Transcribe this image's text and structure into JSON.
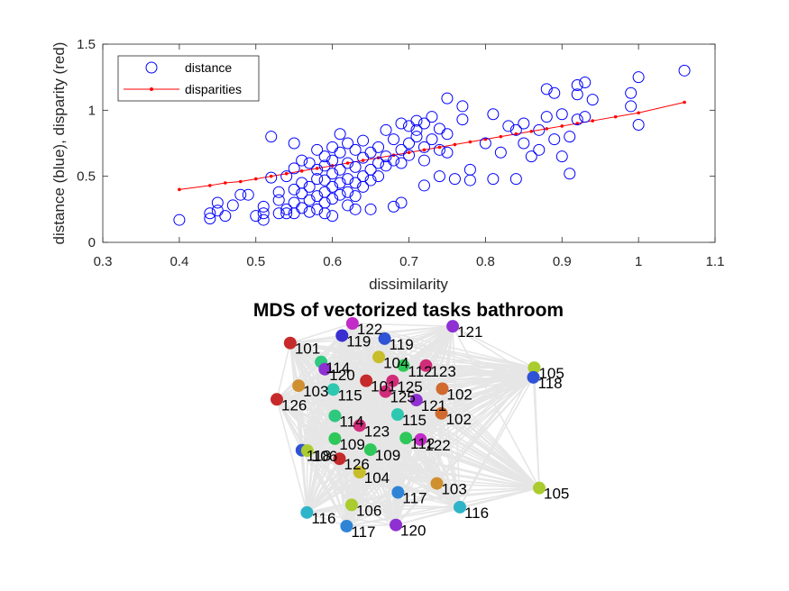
{
  "chart_data": [
    {
      "type": "scatter",
      "title": "",
      "xlabel": "dissimilarity",
      "ylabel": "distance (blue), disparity (red)",
      "xlim": [
        0.3,
        1.1
      ],
      "ylim": [
        0,
        1.5
      ],
      "xticks": [
        "0.3",
        "0.4",
        "0.5",
        "0.6",
        "0.7",
        "0.8",
        "0.9",
        "1",
        "1.1"
      ],
      "yticks": [
        "0",
        "0.5",
        "1",
        "1.5"
      ],
      "legend": {
        "placement": "top-left",
        "entries": [
          "distance",
          "disparities"
        ]
      },
      "series": [
        {
          "name": "distance",
          "color": "#0000ff",
          "marker": "circle-open",
          "points": [
            [
              0.4,
              0.17
            ],
            [
              0.44,
              0.22
            ],
            [
              0.44,
              0.18
            ],
            [
              0.45,
              0.24
            ],
            [
              0.45,
              0.3
            ],
            [
              0.46,
              0.2
            ],
            [
              0.47,
              0.28
            ],
            [
              0.48,
              0.36
            ],
            [
              0.49,
              0.36
            ],
            [
              0.5,
              0.2
            ],
            [
              0.51,
              0.22
            ],
            [
              0.51,
              0.27
            ],
            [
              0.51,
              0.17
            ],
            [
              0.52,
              0.8
            ],
            [
              0.52,
              0.49
            ],
            [
              0.53,
              0.32
            ],
            [
              0.53,
              0.22
            ],
            [
              0.53,
              0.38
            ],
            [
              0.54,
              0.25
            ],
            [
              0.54,
              0.22
            ],
            [
              0.54,
              0.5
            ],
            [
              0.55,
              0.75
            ],
            [
              0.55,
              0.4
            ],
            [
              0.55,
              0.3
            ],
            [
              0.55,
              0.22
            ],
            [
              0.55,
              0.56
            ],
            [
              0.56,
              0.45
            ],
            [
              0.56,
              0.37
            ],
            [
              0.56,
              0.26
            ],
            [
              0.56,
              0.62
            ],
            [
              0.57,
              0.6
            ],
            [
              0.57,
              0.42
            ],
            [
              0.57,
              0.32
            ],
            [
              0.57,
              0.23
            ],
            [
              0.58,
              0.7
            ],
            [
              0.58,
              0.55
            ],
            [
              0.58,
              0.48
            ],
            [
              0.58,
              0.35
            ],
            [
              0.58,
              0.25
            ],
            [
              0.59,
              0.65
            ],
            [
              0.59,
              0.58
            ],
            [
              0.59,
              0.47
            ],
            [
              0.59,
              0.38
            ],
            [
              0.59,
              0.3
            ],
            [
              0.59,
              0.22
            ],
            [
              0.6,
              0.72
            ],
            [
              0.6,
              0.62
            ],
            [
              0.6,
              0.52
            ],
            [
              0.6,
              0.42
            ],
            [
              0.6,
              0.33
            ],
            [
              0.6,
              0.2
            ],
            [
              0.61,
              0.82
            ],
            [
              0.61,
              0.68
            ],
            [
              0.61,
              0.55
            ],
            [
              0.61,
              0.45
            ],
            [
              0.61,
              0.36
            ],
            [
              0.62,
              0.75
            ],
            [
              0.62,
              0.6
            ],
            [
              0.62,
              0.48
            ],
            [
              0.62,
              0.38
            ],
            [
              0.62,
              0.28
            ],
            [
              0.63,
              0.7
            ],
            [
              0.63,
              0.57
            ],
            [
              0.63,
              0.45
            ],
            [
              0.63,
              0.35
            ],
            [
              0.63,
              0.25
            ],
            [
              0.64,
              0.77
            ],
            [
              0.64,
              0.64
            ],
            [
              0.64,
              0.5
            ],
            [
              0.64,
              0.42
            ],
            [
              0.65,
              0.68
            ],
            [
              0.65,
              0.55
            ],
            [
              0.65,
              0.47
            ],
            [
              0.65,
              0.25
            ],
            [
              0.66,
              0.72
            ],
            [
              0.66,
              0.6
            ],
            [
              0.66,
              0.5
            ],
            [
              0.67,
              0.85
            ],
            [
              0.67,
              0.65
            ],
            [
              0.67,
              0.58
            ],
            [
              0.68,
              0.78
            ],
            [
              0.68,
              0.62
            ],
            [
              0.68,
              0.27
            ],
            [
              0.69,
              0.9
            ],
            [
              0.69,
              0.7
            ],
            [
              0.69,
              0.6
            ],
            [
              0.69,
              0.3
            ],
            [
              0.7,
              0.88
            ],
            [
              0.7,
              0.75
            ],
            [
              0.7,
              0.66
            ],
            [
              0.71,
              0.92
            ],
            [
              0.71,
              0.85
            ],
            [
              0.71,
              0.8
            ],
            [
              0.72,
              0.9
            ],
            [
              0.72,
              0.72
            ],
            [
              0.72,
              0.62
            ],
            [
              0.72,
              0.43
            ],
            [
              0.73,
              0.95
            ],
            [
              0.73,
              0.78
            ],
            [
              0.74,
              0.86
            ],
            [
              0.74,
              0.7
            ],
            [
              0.74,
              0.5
            ],
            [
              0.75,
              0.82
            ],
            [
              0.75,
              0.68
            ],
            [
              0.75,
              1.09
            ],
            [
              0.76,
              0.48
            ],
            [
              0.77,
              1.03
            ],
            [
              0.77,
              0.93
            ],
            [
              0.78,
              0.55
            ],
            [
              0.78,
              0.47
            ],
            [
              0.8,
              0.75
            ],
            [
              0.81,
              0.97
            ],
            [
              0.81,
              0.48
            ],
            [
              0.82,
              0.68
            ],
            [
              0.83,
              0.88
            ],
            [
              0.84,
              0.85
            ],
            [
              0.84,
              0.48
            ],
            [
              0.85,
              0.9
            ],
            [
              0.85,
              0.75
            ],
            [
              0.86,
              0.65
            ],
            [
              0.87,
              0.7
            ],
            [
              0.87,
              0.85
            ],
            [
              0.88,
              1.16
            ],
            [
              0.88,
              0.95
            ],
            [
              0.89,
              1.13
            ],
            [
              0.89,
              0.78
            ],
            [
              0.9,
              0.97
            ],
            [
              0.9,
              0.65
            ],
            [
              0.91,
              0.8
            ],
            [
              0.91,
              0.52
            ],
            [
              0.92,
              1.12
            ],
            [
              0.92,
              1.19
            ],
            [
              0.92,
              0.93
            ],
            [
              0.93,
              1.21
            ],
            [
              0.93,
              0.95
            ],
            [
              0.94,
              1.08
            ],
            [
              0.99,
              1.13
            ],
            [
              0.99,
              1.03
            ],
            [
              1.0,
              0.89
            ],
            [
              1.0,
              1.25
            ],
            [
              1.06,
              1.3
            ]
          ]
        },
        {
          "name": "disparities",
          "color": "#ff0000",
          "marker": "line-dot",
          "points": [
            [
              0.4,
              0.4
            ],
            [
              0.44,
              0.43
            ],
            [
              0.46,
              0.45
            ],
            [
              0.48,
              0.46
            ],
            [
              0.5,
              0.48
            ],
            [
              0.52,
              0.5
            ],
            [
              0.54,
              0.52
            ],
            [
              0.56,
              0.54
            ],
            [
              0.58,
              0.56
            ],
            [
              0.6,
              0.58
            ],
            [
              0.62,
              0.6
            ],
            [
              0.64,
              0.62
            ],
            [
              0.66,
              0.64
            ],
            [
              0.68,
              0.66
            ],
            [
              0.7,
              0.68
            ],
            [
              0.72,
              0.7
            ],
            [
              0.74,
              0.72
            ],
            [
              0.76,
              0.74
            ],
            [
              0.78,
              0.76
            ],
            [
              0.8,
              0.78
            ],
            [
              0.82,
              0.8
            ],
            [
              0.84,
              0.82
            ],
            [
              0.86,
              0.84
            ],
            [
              0.88,
              0.86
            ],
            [
              0.9,
              0.88
            ],
            [
              0.92,
              0.9
            ],
            [
              0.94,
              0.92
            ],
            [
              0.97,
              0.95
            ],
            [
              1.0,
              0.98
            ],
            [
              1.06,
              1.06
            ]
          ]
        }
      ]
    },
    {
      "type": "scatter",
      "title": "MDS of vectorized tasks bathroom",
      "edge_color": "#e6e6e6",
      "nodes": [
        {
          "label": "122",
          "x": 0.93,
          "y": 2.0,
          "color": "#c22bc8"
        },
        {
          "label": "121",
          "x": 3.33,
          "y": 1.85,
          "color": "#8f30d2"
        },
        {
          "label": "119",
          "x": 0.68,
          "y": 1.36,
          "color": "#3a2fd0"
        },
        {
          "label": "119",
          "x": 1.7,
          "y": 1.2,
          "color": "#2f52d6"
        },
        {
          "label": "101",
          "x": -0.56,
          "y": 0.97,
          "color": "#c62a2a"
        },
        {
          "label": "104",
          "x": 1.56,
          "y": 0.23,
          "color": "#c8bd2a"
        },
        {
          "label": "114",
          "x": 0.18,
          "y": -0.03,
          "color": "#2ec87e"
        },
        {
          "label": "112",
          "x": 2.15,
          "y": -0.22,
          "color": "#2ec85a"
        },
        {
          "label": "123",
          "x": 2.69,
          "y": -0.22,
          "color": "#d12c7a"
        },
        {
          "label": "105",
          "x": 5.28,
          "y": -0.33,
          "color": "#aacc2e"
        },
        {
          "label": "120",
          "x": 0.27,
          "y": -0.41,
          "color": "#8f30d2"
        },
        {
          "label": "118",
          "x": 5.26,
          "y": -0.84,
          "color": "#2f52d6"
        },
        {
          "label": "103",
          "x": -0.36,
          "y": -1.28,
          "color": "#d0902f"
        },
        {
          "label": "115",
          "x": 0.47,
          "y": -1.48,
          "color": "#2ec8b0"
        },
        {
          "label": "101",
          "x": 1.26,
          "y": -1.02,
          "color": "#c62a2a"
        },
        {
          "label": "125",
          "x": 1.89,
          "y": -1.03,
          "color": "#d12c7a"
        },
        {
          "label": "125",
          "x": 1.72,
          "y": -1.59,
          "color": "#d12c7a"
        },
        {
          "label": "102",
          "x": 3.08,
          "y": -1.44,
          "color": "#d06a2f"
        },
        {
          "label": "126",
          "x": -0.88,
          "y": -2.0,
          "color": "#c62a2a"
        },
        {
          "label": "121",
          "x": 2.46,
          "y": -2.04,
          "color": "#8f30d2"
        },
        {
          "label": "114",
          "x": 0.51,
          "y": -2.87,
          "color": "#2ec87e"
        },
        {
          "label": "115",
          "x": 2.01,
          "y": -2.8,
          "color": "#2ec8b0"
        },
        {
          "label": "102",
          "x": 3.06,
          "y": -2.74,
          "color": "#d06a2f"
        },
        {
          "label": "123",
          "x": 1.1,
          "y": -3.38,
          "color": "#d12c7a"
        },
        {
          "label": "109",
          "x": 0.51,
          "y": -4.07,
          "color": "#2ec85a"
        },
        {
          "label": "112",
          "x": 2.21,
          "y": -4.04,
          "color": "#2ec85a"
        },
        {
          "label": "122",
          "x": 2.56,
          "y": -4.12,
          "color": "#c22bc8"
        },
        {
          "label": "109",
          "x": 1.36,
          "y": -4.65,
          "color": "#2ec85a"
        },
        {
          "label": "118",
          "x": -0.28,
          "y": -4.68,
          "color": "#2f52d6"
        },
        {
          "label": "106",
          "x": -0.15,
          "y": -4.7,
          "color": "#aacc2e"
        },
        {
          "label": "126",
          "x": 0.62,
          "y": -5.13,
          "color": "#c62a2a"
        },
        {
          "label": "104",
          "x": 1.1,
          "y": -5.84,
          "color": "#c8bd2a"
        },
        {
          "label": "103",
          "x": 2.95,
          "y": -6.43,
          "color": "#d0902f"
        },
        {
          "label": "105",
          "x": 5.4,
          "y": -6.67,
          "color": "#aacc2e"
        },
        {
          "label": "117",
          "x": 2.02,
          "y": -6.9,
          "color": "#2f84d6"
        },
        {
          "label": "106",
          "x": 0.91,
          "y": -7.56,
          "color": "#aacc2e"
        },
        {
          "label": "116",
          "x": -0.16,
          "y": -7.96,
          "color": "#2eb4c8"
        },
        {
          "label": "116",
          "x": 3.5,
          "y": -7.68,
          "color": "#2eb4c8"
        },
        {
          "label": "117",
          "x": 0.79,
          "y": -8.68,
          "color": "#2f84d6"
        },
        {
          "label": "120",
          "x": 1.97,
          "y": -8.62,
          "color": "#8f30d2"
        }
      ]
    }
  ]
}
